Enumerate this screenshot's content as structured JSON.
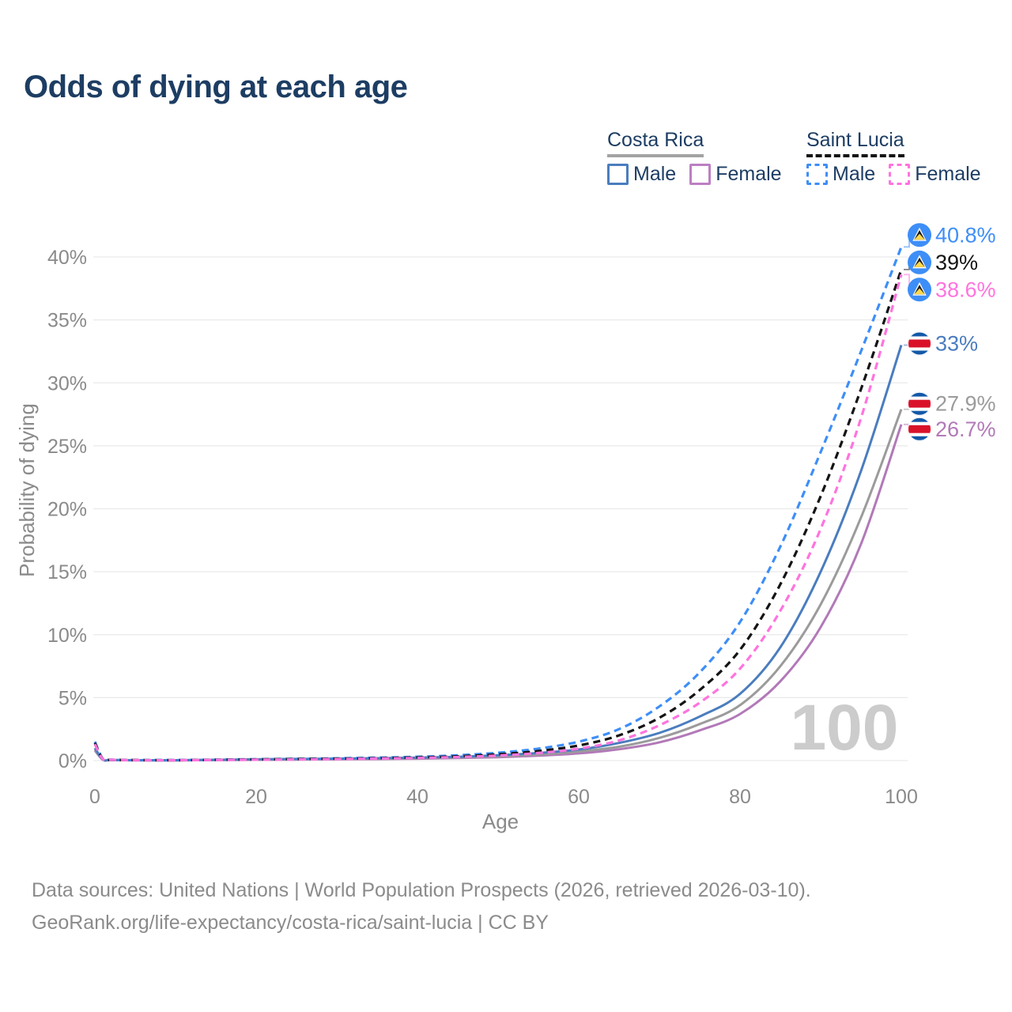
{
  "title": "Odds of dying at each age",
  "legend": {
    "groups": [
      {
        "id": "costa-rica",
        "label": "Costa Rica",
        "line_style": "solid",
        "underline_color": "#A3A3A3",
        "items": [
          {
            "id": "cr-male",
            "label": "Male",
            "color": "#4A7DBE"
          },
          {
            "id": "cr-female",
            "label": "Female",
            "color": "#BC7FC2"
          }
        ]
      },
      {
        "id": "saint-lucia",
        "label": "Saint Lucia",
        "line_style": "dashed",
        "underline_color": "#141414",
        "items": [
          {
            "id": "sl-male",
            "label": "Male",
            "color": "#3E8EF7"
          },
          {
            "id": "sl-female",
            "label": "Female",
            "color": "#FF73DE"
          }
        ]
      }
    ]
  },
  "chart_data": {
    "type": "line",
    "title": "Odds of dying at each age",
    "xlabel": "Age",
    "ylabel": "Probability of dying",
    "xlim": [
      0,
      100
    ],
    "ylim": [
      0,
      42
    ],
    "x_ticks": [
      0,
      20,
      40,
      60,
      80,
      100
    ],
    "y_ticks": [
      0,
      5,
      10,
      15,
      20,
      25,
      30,
      35,
      40
    ],
    "y_suffix": "%",
    "grid": "horizontal-only",
    "legend_position": "top-right",
    "watermark": "100",
    "ages": [
      0,
      1,
      2,
      5,
      10,
      15,
      20,
      25,
      30,
      35,
      40,
      45,
      50,
      55,
      60,
      65,
      70,
      75,
      80,
      85,
      90,
      95,
      100
    ],
    "series": [
      {
        "id": "cr-female",
        "name": "Costa Rica Female",
        "country": "costa-rica",
        "sex": "female",
        "dash": false,
        "color": "#B279B8",
        "end_label": "26.7%",
        "end_value": 26.7,
        "label_dy": 6,
        "values": [
          0.8,
          0.06,
          0.04,
          0.02,
          0.02,
          0.04,
          0.06,
          0.08,
          0.1,
          0.12,
          0.15,
          0.2,
          0.27,
          0.39,
          0.57,
          0.9,
          1.45,
          2.4,
          3.7,
          6.3,
          10.6,
          17.2,
          26.7
        ]
      },
      {
        "id": "cr-total",
        "name": "Costa Rica Both sexes",
        "country": "costa-rica",
        "sex": "both",
        "dash": false,
        "color": "#9B9B9B",
        "end_label": "27.9%",
        "end_value": 27.9,
        "label_dy": -7,
        "values": [
          0.9,
          0.07,
          0.05,
          0.03,
          0.02,
          0.05,
          0.08,
          0.1,
          0.13,
          0.15,
          0.19,
          0.25,
          0.34,
          0.49,
          0.72,
          1.1,
          1.8,
          2.9,
          4.4,
          7.5,
          12.4,
          19.3,
          27.9
        ]
      },
      {
        "id": "cr-male",
        "name": "Costa Rica Male",
        "country": "costa-rica",
        "sex": "male",
        "dash": false,
        "color": "#4A7DBE",
        "end_label": "33%",
        "end_value": 33,
        "label_dy": -2,
        "values": [
          1.0,
          0.08,
          0.05,
          0.03,
          0.03,
          0.06,
          0.1,
          0.13,
          0.16,
          0.19,
          0.23,
          0.3,
          0.42,
          0.6,
          0.88,
          1.4,
          2.2,
          3.5,
          5.3,
          9.0,
          15.0,
          23.0,
          33.0
        ]
      },
      {
        "id": "sl-male",
        "name": "Saint Lucia Male",
        "country": "saint-lucia",
        "sex": "male",
        "dash": true,
        "color": "#3E8EF7",
        "end_label": "40.8%",
        "end_value": 40.8,
        "label_dy": -15,
        "values": [
          1.5,
          0.12,
          0.07,
          0.04,
          0.04,
          0.07,
          0.11,
          0.14,
          0.18,
          0.23,
          0.3,
          0.42,
          0.62,
          0.95,
          1.5,
          2.5,
          4.3,
          7.0,
          11.0,
          17.0,
          24.5,
          32.5,
          40.8
        ]
      },
      {
        "id": "sl-total",
        "name": "Saint Lucia Both sexes",
        "country": "saint-lucia",
        "sex": "both",
        "dash": true,
        "color": "#141414",
        "end_label": "39%",
        "end_value": 39,
        "label_dy": -9,
        "values": [
          1.4,
          0.11,
          0.06,
          0.04,
          0.03,
          0.06,
          0.09,
          0.12,
          0.15,
          0.19,
          0.25,
          0.34,
          0.5,
          0.76,
          1.2,
          2.0,
          3.4,
          5.6,
          8.8,
          14.0,
          21.0,
          29.5,
          39.0
        ]
      },
      {
        "id": "sl-female",
        "name": "Saint Lucia Female",
        "country": "saint-lucia",
        "sex": "female",
        "dash": true,
        "color": "#FF73DE",
        "end_label": "38.6%",
        "end_value": 38.6,
        "label_dy": 19,
        "values": [
          1.3,
          0.1,
          0.06,
          0.03,
          0.03,
          0.05,
          0.07,
          0.09,
          0.12,
          0.16,
          0.21,
          0.28,
          0.4,
          0.6,
          0.95,
          1.6,
          2.8,
          4.6,
          7.3,
          11.9,
          18.4,
          27.2,
          38.6
        ]
      }
    ]
  },
  "colors": {
    "title": "#1D3D63",
    "axis_text": "#8A8A8A",
    "gridline": "#E9E9E9",
    "watermark": "#CCCCCC",
    "footer": "#8B8B8B"
  },
  "flags": {
    "costa-rica": {
      "blue": "#1358A8",
      "white": "#FFFFFF",
      "red": "#D9122A"
    },
    "saint-lucia": {
      "blue": "#3E8EF7",
      "white": "#FFFFFF",
      "black": "#1A1A1A",
      "yellow": "#FFD84D"
    }
  },
  "footer": {
    "line1": "Data sources: United Nations | World Population Prospects (2026, retrieved 2026-03-10).",
    "line2": "GeoRank.org/life-expectancy/costa-rica/saint-lucia | CC BY"
  }
}
